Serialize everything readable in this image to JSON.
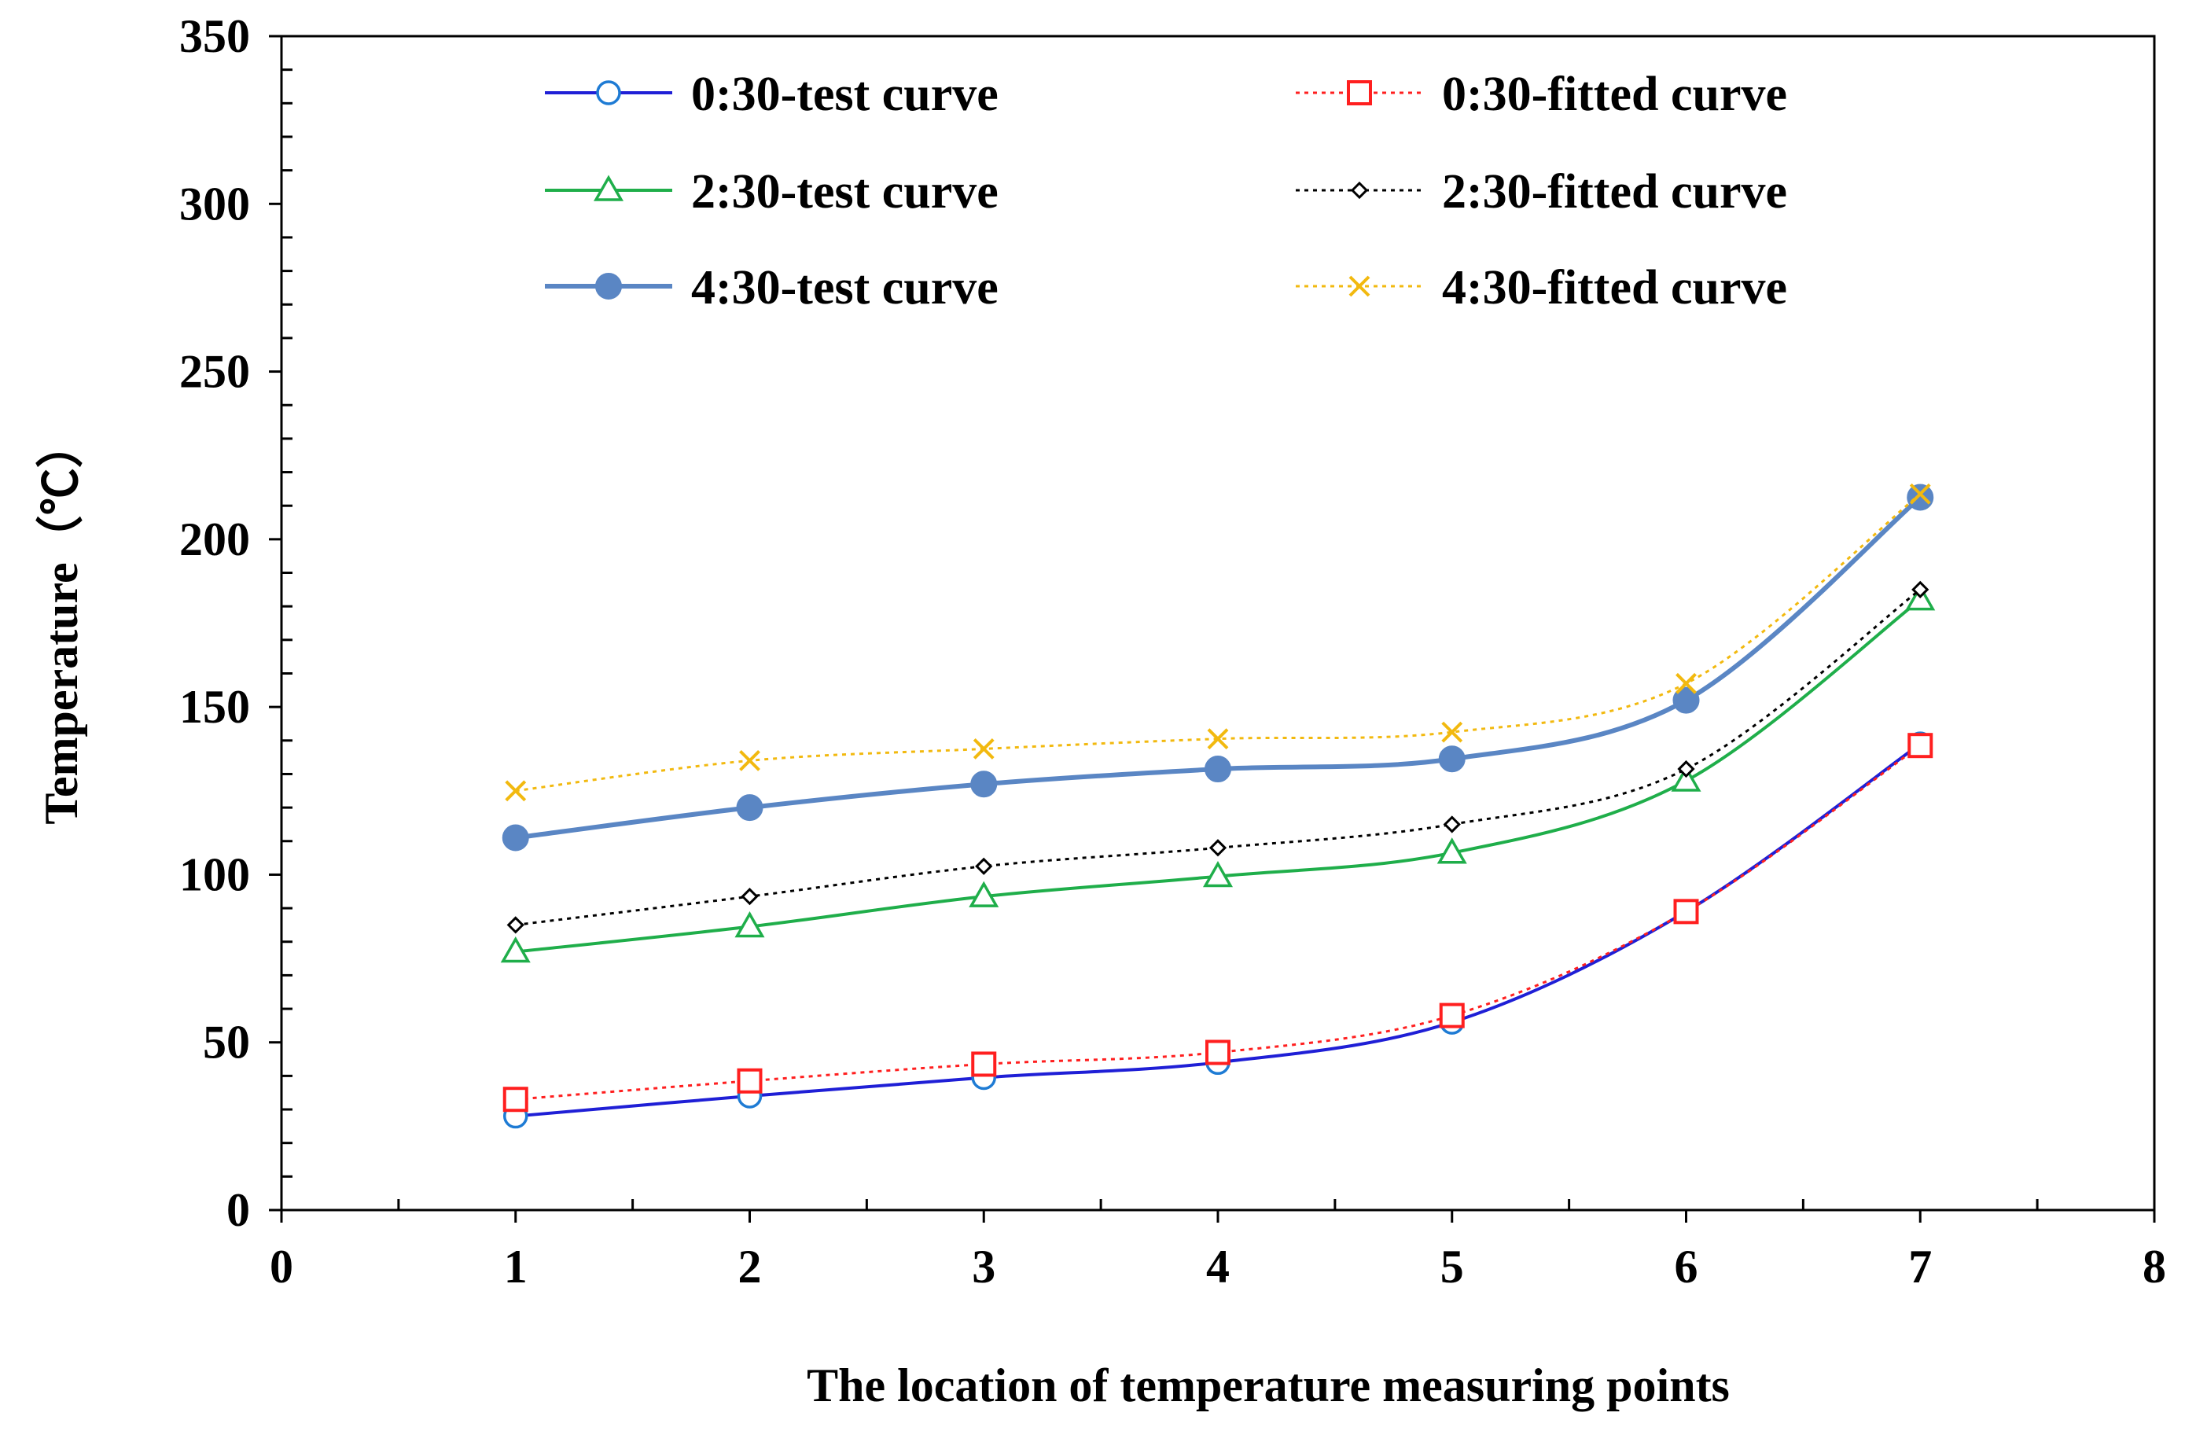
{
  "chart_data": {
    "type": "line",
    "title": "",
    "xlabel": "The location of temperature measuring points",
    "ylabel": "Temperature（℃）",
    "xlim": [
      0,
      8
    ],
    "ylim": [
      0,
      350
    ],
    "x_ticks": [
      0,
      1,
      2,
      3,
      4,
      5,
      6,
      7,
      8
    ],
    "y_ticks": [
      0,
      50,
      100,
      150,
      200,
      250,
      300,
      350
    ],
    "x_tick_labels": [
      "0",
      "1",
      "2",
      "3",
      "4",
      "5",
      "6",
      "7",
      "8"
    ],
    "y_tick_labels": [
      "0",
      "50",
      "100",
      "150",
      "200",
      "250",
      "300",
      "350"
    ],
    "grid": false,
    "legend_position": "top",
    "x": [
      1,
      2,
      3,
      4,
      5,
      6,
      7
    ],
    "series": [
      {
        "name": "0:30-test curve",
        "values": [
          28,
          34,
          39.5,
          44,
          56,
          89,
          139
        ],
        "color": "#1f1fd6",
        "dash": "solid",
        "marker": "circle-open",
        "marker_color": "#1e7bd4"
      },
      {
        "name": "0:30-fitted curve",
        "values": [
          33,
          38.5,
          43.5,
          47,
          58,
          89,
          138.5
        ],
        "color": "#ff1f1f",
        "dash": "dotted",
        "marker": "square-open",
        "marker_color": "#ff1f1f"
      },
      {
        "name": "2:30-test curve",
        "values": [
          77,
          84.5,
          93.5,
          99.5,
          106.5,
          128,
          182
        ],
        "color": "#1fae4a",
        "dash": "solid",
        "marker": "triangle-open",
        "marker_color": "#1fae4a"
      },
      {
        "name": "2:30-fitted curve",
        "values": [
          85,
          93.5,
          102.5,
          108,
          115,
          131.5,
          185
        ],
        "color": "#000000",
        "dash": "dotted",
        "marker": "diamond-open",
        "marker_color": "#000000"
      },
      {
        "name": "4:30-test curve",
        "values": [
          111,
          120,
          127,
          131.5,
          134.5,
          152,
          212.5
        ],
        "color": "#5a86c4",
        "dash": "solid",
        "marker": "circle-filled",
        "marker_color": "#5a86c4"
      },
      {
        "name": "4:30-fitted curve",
        "values": [
          125,
          134,
          137.5,
          140.5,
          142.5,
          157,
          213.5
        ],
        "color": "#f2b90f",
        "dash": "dotted",
        "marker": "x",
        "marker_color": "#f2b90f"
      }
    ]
  }
}
